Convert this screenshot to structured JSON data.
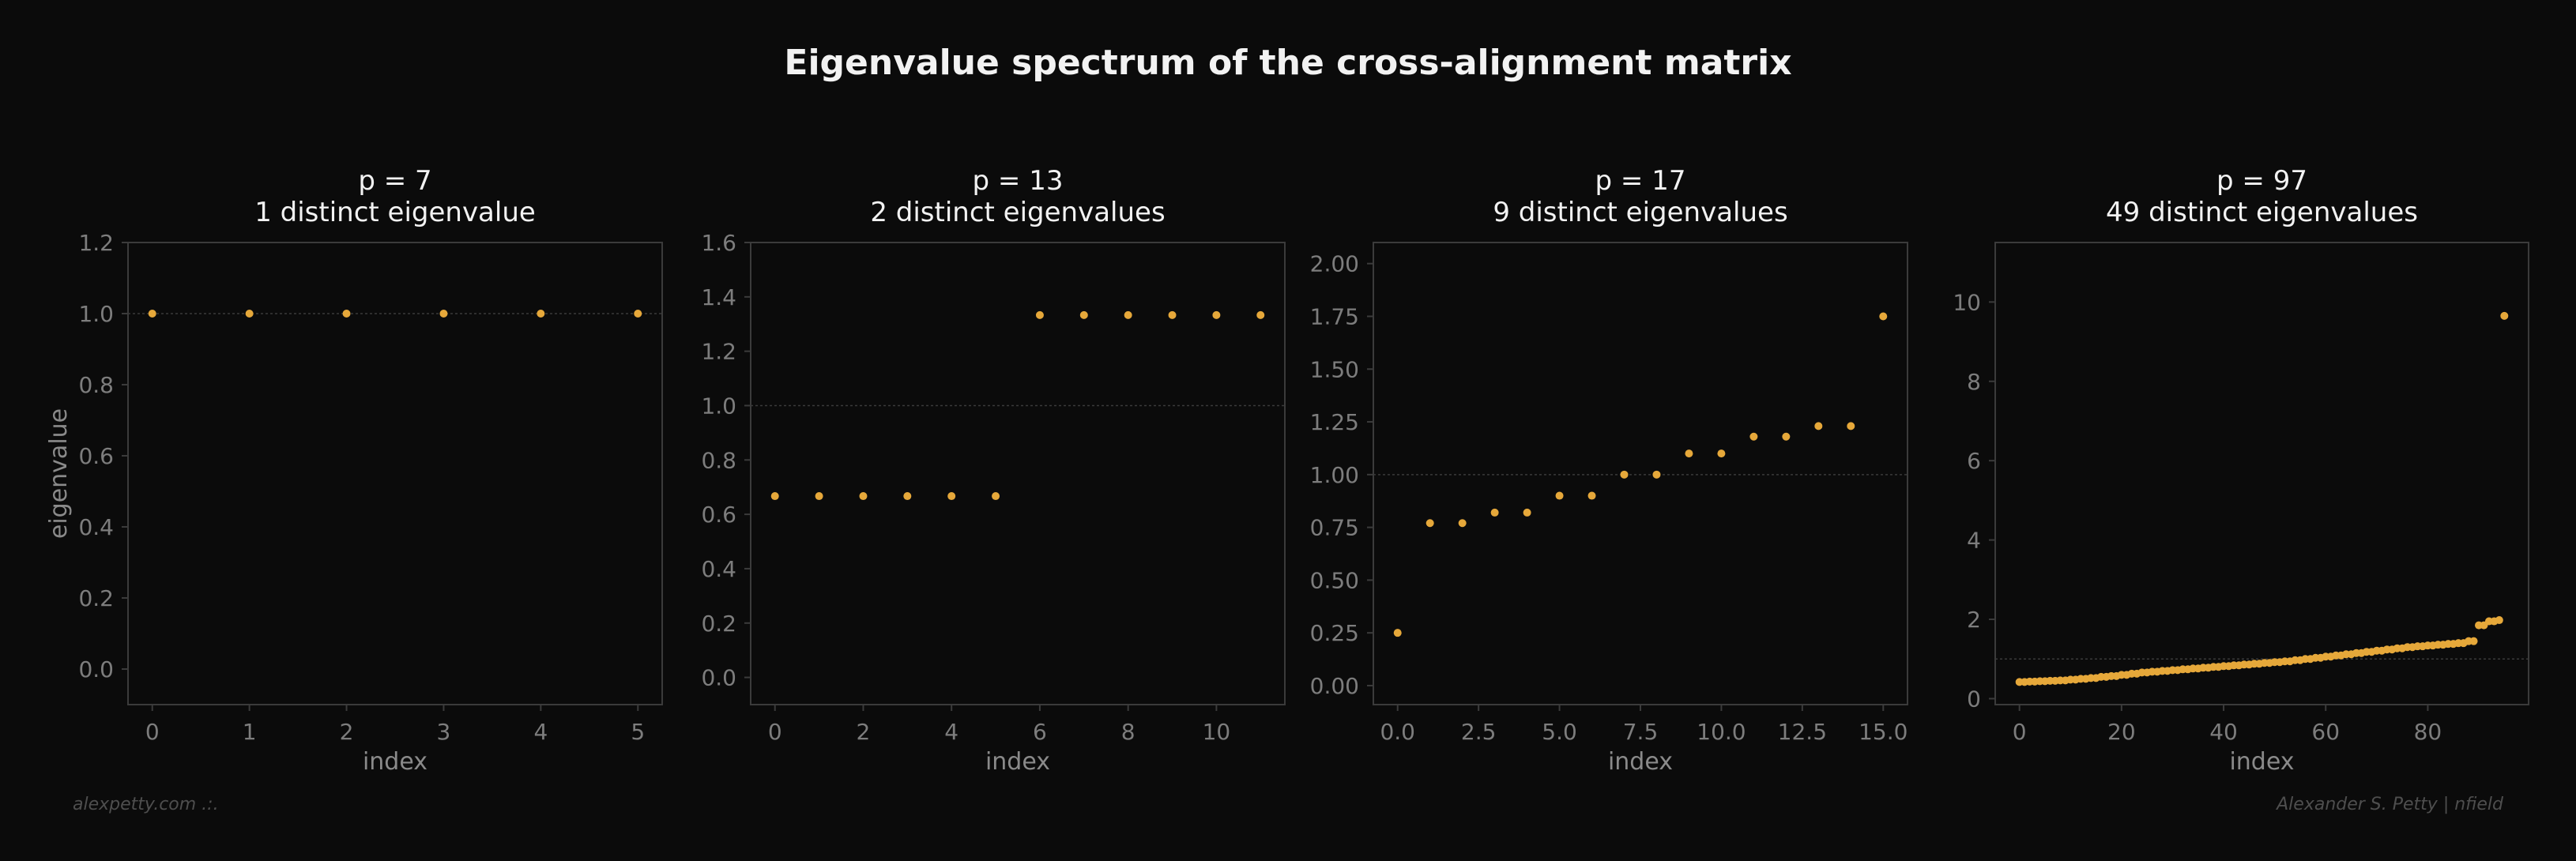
{
  "title": "Eigenvalue spectrum of the cross-alignment matrix",
  "footer_left": "alexpetty.com .:.",
  "footer_right": "Alexander S. Petty | nfield",
  "colors": {
    "background": "#0b0b0b",
    "points": "#e6a83a",
    "reference_line": "#3a3a3a",
    "spine": "#3b3b3b",
    "text": "#f2f2f2",
    "muted": "#7d7d7d"
  },
  "chart_data": [
    {
      "type": "scatter",
      "title_line1": "p = 7",
      "title_line2": "1 distinct eigenvalue",
      "xlabel": "index",
      "ylabel": "eigenvalue",
      "xlim": [
        -0.25,
        5.25
      ],
      "ylim": [
        -0.1,
        1.2
      ],
      "xticks": [
        0,
        1,
        2,
        3,
        4,
        5
      ],
      "xtick_labels": [
        "0",
        "1",
        "2",
        "3",
        "4",
        "5"
      ],
      "yticks": [
        0.0,
        0.2,
        0.4,
        0.6,
        0.8,
        1.0,
        1.2
      ],
      "ytick_labels": [
        "0.0",
        "0.2",
        "0.4",
        "0.6",
        "0.8",
        "1.0",
        "1.2"
      ],
      "reference_y": 1.0,
      "x": [
        0,
        1,
        2,
        3,
        4,
        5
      ],
      "y": [
        1.0,
        1.0,
        1.0,
        1.0,
        1.0,
        1.0
      ]
    },
    {
      "type": "scatter",
      "title_line1": "p = 13",
      "title_line2": "2 distinct eigenvalues",
      "xlabel": "index",
      "ylabel": "",
      "xlim": [
        -0.55,
        11.55
      ],
      "ylim": [
        -0.1,
        1.6
      ],
      "xticks": [
        0,
        2,
        4,
        6,
        8,
        10
      ],
      "xtick_labels": [
        "0",
        "2",
        "4",
        "6",
        "8",
        "10"
      ],
      "yticks": [
        0.0,
        0.2,
        0.4,
        0.6,
        0.8,
        1.0,
        1.2,
        1.4,
        1.6
      ],
      "ytick_labels": [
        "0.0",
        "0.2",
        "0.4",
        "0.6",
        "0.8",
        "1.0",
        "1.2",
        "1.4",
        "1.6"
      ],
      "reference_y": 1.0,
      "x": [
        0,
        1,
        2,
        3,
        4,
        5,
        6,
        7,
        8,
        9,
        10,
        11
      ],
      "y": [
        0.667,
        0.667,
        0.667,
        0.667,
        0.667,
        0.667,
        1.333,
        1.333,
        1.333,
        1.333,
        1.333,
        1.333
      ]
    },
    {
      "type": "scatter",
      "title_line1": "p = 17",
      "title_line2": "9 distinct eigenvalues",
      "xlabel": "index",
      "ylabel": "",
      "xlim": [
        -0.75,
        15.75
      ],
      "ylim": [
        -0.09,
        2.1
      ],
      "xticks": [
        0.0,
        2.5,
        5.0,
        7.5,
        10.0,
        12.5,
        15.0
      ],
      "xtick_labels": [
        "0.0",
        "2.5",
        "5.0",
        "7.5",
        "10.0",
        "12.5",
        "15.0"
      ],
      "yticks": [
        0.0,
        0.25,
        0.5,
        0.75,
        1.0,
        1.25,
        1.5,
        1.75,
        2.0
      ],
      "ytick_labels": [
        "0.00",
        "0.25",
        "0.50",
        "0.75",
        "1.00",
        "1.25",
        "1.50",
        "1.75",
        "2.00"
      ],
      "reference_y": 1.0,
      "x": [
        0,
        1,
        2,
        3,
        4,
        5,
        6,
        7,
        8,
        9,
        10,
        11,
        12,
        13,
        14,
        15
      ],
      "y": [
        0.25,
        0.77,
        0.77,
        0.82,
        0.82,
        0.9,
        0.9,
        1.0,
        1.0,
        1.1,
        1.1,
        1.18,
        1.18,
        1.23,
        1.23,
        1.75
      ]
    },
    {
      "type": "scatter",
      "title_line1": "p = 97",
      "title_line2": "49 distinct eigenvalues",
      "xlabel": "index",
      "ylabel": "",
      "xlim": [
        -4.75,
        99.75
      ],
      "ylim": [
        -0.15,
        11.5
      ],
      "xticks": [
        0,
        20,
        40,
        60,
        80
      ],
      "xtick_labels": [
        "0",
        "20",
        "40",
        "60",
        "80"
      ],
      "yticks": [
        0,
        2,
        4,
        6,
        8,
        10
      ],
      "ytick_labels": [
        "0",
        "2",
        "4",
        "6",
        "8",
        "10"
      ],
      "reference_y": 1.0,
      "x": [
        0,
        1,
        2,
        3,
        4,
        5,
        6,
        7,
        8,
        9,
        10,
        11,
        12,
        13,
        14,
        15,
        16,
        17,
        18,
        19,
        20,
        21,
        22,
        23,
        24,
        25,
        26,
        27,
        28,
        29,
        30,
        31,
        32,
        33,
        34,
        35,
        36,
        37,
        38,
        39,
        40,
        41,
        42,
        43,
        44,
        45,
        46,
        47,
        48,
        49,
        50,
        51,
        52,
        53,
        54,
        55,
        56,
        57,
        58,
        59,
        60,
        61,
        62,
        63,
        64,
        65,
        66,
        67,
        68,
        69,
        70,
        71,
        72,
        73,
        74,
        75,
        76,
        77,
        78,
        79,
        80,
        81,
        82,
        83,
        84,
        85,
        86,
        87,
        88,
        89,
        90,
        91,
        92,
        93,
        94,
        95
      ],
      "y": [
        0.42,
        0.42,
        0.43,
        0.43,
        0.44,
        0.44,
        0.45,
        0.45,
        0.46,
        0.46,
        0.48,
        0.48,
        0.5,
        0.5,
        0.52,
        0.52,
        0.55,
        0.55,
        0.57,
        0.57,
        0.6,
        0.6,
        0.63,
        0.63,
        0.66,
        0.66,
        0.68,
        0.68,
        0.7,
        0.7,
        0.72,
        0.72,
        0.74,
        0.74,
        0.76,
        0.76,
        0.78,
        0.78,
        0.8,
        0.8,
        0.82,
        0.82,
        0.84,
        0.84,
        0.86,
        0.86,
        0.88,
        0.88,
        0.9,
        0.9,
        0.92,
        0.92,
        0.94,
        0.94,
        0.97,
        0.97,
        1.0,
        1.0,
        1.03,
        1.03,
        1.06,
        1.06,
        1.09,
        1.09,
        1.12,
        1.12,
        1.15,
        1.15,
        1.18,
        1.18,
        1.21,
        1.21,
        1.24,
        1.24,
        1.27,
        1.27,
        1.3,
        1.3,
        1.32,
        1.32,
        1.34,
        1.34,
        1.36,
        1.36,
        1.38,
        1.38,
        1.4,
        1.4,
        1.45,
        1.45,
        1.85,
        1.85,
        1.95,
        1.95,
        1.98,
        9.65
      ]
    }
  ]
}
